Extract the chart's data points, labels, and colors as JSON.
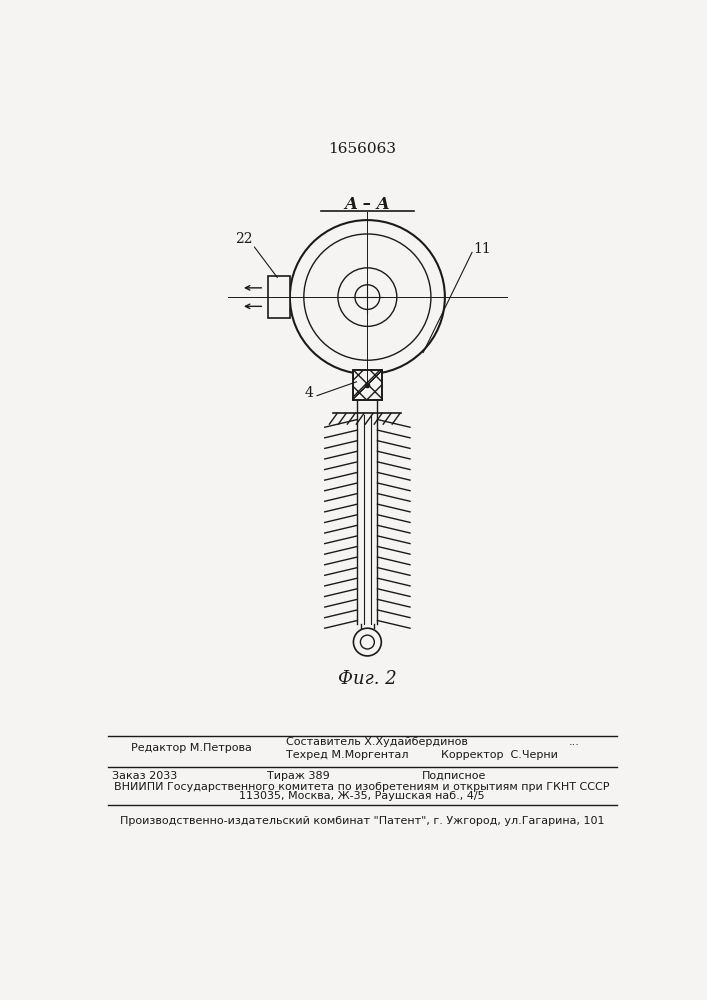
{
  "patent_number": "1656063",
  "figure_label": "Фиг. 2",
  "section_label": "A – A",
  "label_11": "11",
  "label_22": "22",
  "label_4": "4",
  "background_color": "#f5f4f2",
  "line_color": "#1a1a1a",
  "footer_line0": "Составитель Х.Худайбердинов",
  "footer_line1": "Техред М.Моргентал",
  "footer_line2": "Корректор  С.Черни",
  "editor_line": "Редактор М.Петрова",
  "zakaz_text": "Заказ 2033",
  "tirazh_text": "Тираж 389",
  "podpisnoe_text": "Подписное",
  "vnipi_line1": "ВНИИПИ Государственного комитета по изобретениям и открытиям при ГКНТ СССР",
  "vnipi_line2": "113035, Москва, Ж-35, Раушская наб., 4/5",
  "production_line": "Производственно-издательский комбинат \"Патент\", г. Ужгород, ул.Гагарина, 101"
}
